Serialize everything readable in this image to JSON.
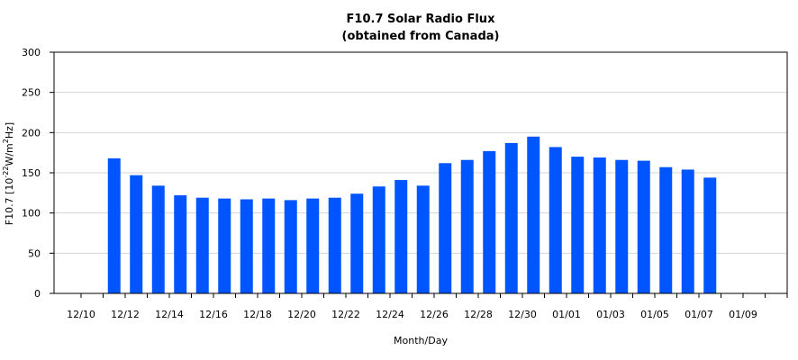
{
  "chart_data": {
    "type": "bar",
    "title": "F10.7 Solar Radio Flux",
    "subtitle": "(obtained from Canada)",
    "xlabel": "Month/Day",
    "ylabel": {
      "prefix": "F10.7 [10",
      "exp1": "-22",
      "mid": "W/m",
      "exp2": "2",
      "suffix": "Hz]"
    },
    "ylim": [
      0,
      300
    ],
    "yticks": [
      0,
      50,
      100,
      150,
      200,
      250,
      300
    ],
    "grid": true,
    "bar_color": "#0055ff",
    "categories": [
      "12/10",
      "12/11",
      "12/12",
      "12/13",
      "12/14",
      "12/15",
      "12/16",
      "12/17",
      "12/18",
      "12/19",
      "12/20",
      "12/21",
      "12/22",
      "12/23",
      "12/24",
      "12/25",
      "12/26",
      "12/27",
      "12/28",
      "12/29",
      "12/30",
      "12/31",
      "01/01",
      "01/02",
      "01/03",
      "01/04",
      "01/05",
      "01/06",
      "01/07",
      "01/08",
      "01/09",
      "01/10"
    ],
    "values": [
      null,
      168,
      147,
      134,
      122,
      119,
      118,
      117,
      118,
      116,
      118,
      119,
      124,
      133,
      141,
      134,
      162,
      166,
      177,
      187,
      195,
      182,
      170,
      169,
      166,
      165,
      157,
      154,
      144,
      null,
      null,
      null
    ],
    "xtick_labels": [
      "12/10",
      "12/12",
      "12/14",
      "12/16",
      "12/18",
      "12/20",
      "12/22",
      "12/24",
      "12/26",
      "12/28",
      "12/30",
      "01/01",
      "01/03",
      "01/05",
      "01/07",
      "01/09"
    ]
  }
}
